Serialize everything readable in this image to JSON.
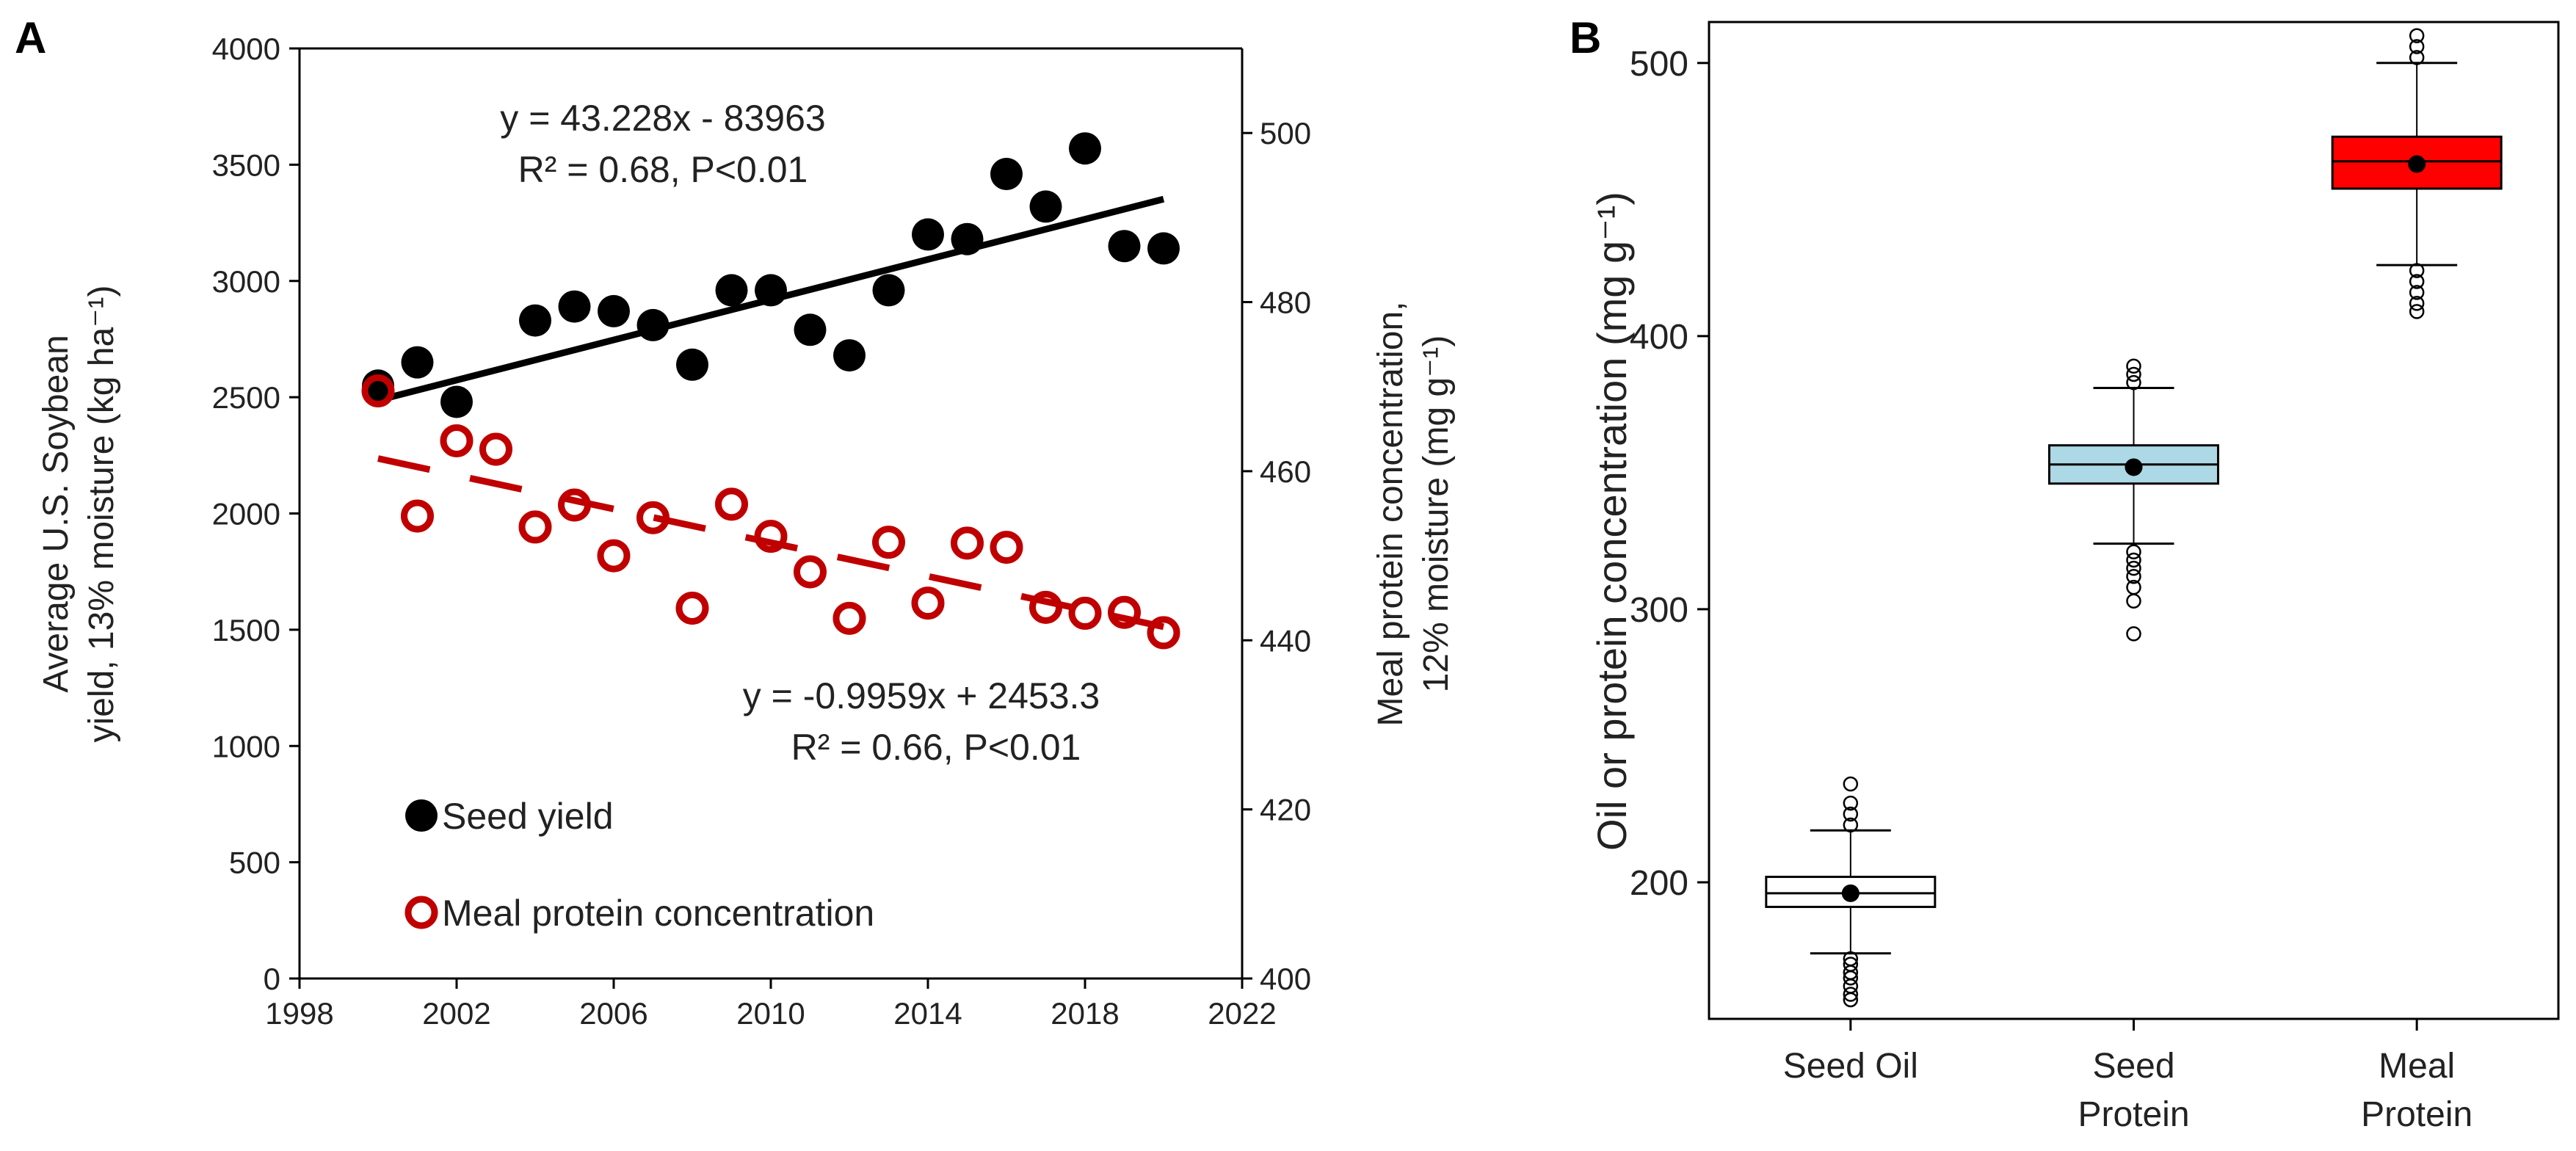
{
  "colors": {
    "seed_yield": "#000000",
    "meal_protein": "#c00000",
    "seed_oil_box": "#ffffff",
    "seed_protein_box": "#add8e6",
    "meal_protein_box": "#ff0000"
  },
  "chart_data": [
    {
      "panel": "A",
      "type": "scatter",
      "xlabel": "",
      "xlim": [
        1998,
        2022
      ],
      "xticks": [
        "1998",
        "2002",
        "2006",
        "2010",
        "2014",
        "2018",
        "2022"
      ],
      "ylabel_left": [
        "Average U.S. Soybean",
        "yield, 13% moisture (kg ha⁻¹)"
      ],
      "ylim_left": [
        0,
        4000
      ],
      "yticks_left": [
        "0",
        "500",
        "1000",
        "1500",
        "2000",
        "2500",
        "3000",
        "3500",
        "4000"
      ],
      "ylabel_right": [
        "Meal protein concentration,",
        "12% moisture (mg g⁻¹)"
      ],
      "ylim_right": [
        400,
        510
      ],
      "yticks_right": [
        "400",
        "420",
        "440",
        "460",
        "480",
        "500"
      ],
      "series": [
        {
          "name": "Seed yield",
          "axis": "left",
          "marker": "filled-circle",
          "x": [
            2000,
            2001,
            2002,
            2004,
            2005,
            2006,
            2007,
            2008,
            2009,
            2010,
            2011,
            2012,
            2013,
            2014,
            2015,
            2016,
            2017,
            2018,
            2019,
            2020
          ],
          "y": [
            2550,
            2650,
            2480,
            2830,
            2890,
            2870,
            2810,
            2640,
            2960,
            2960,
            2790,
            2680,
            2960,
            3200,
            3180,
            3460,
            3320,
            3570,
            3150,
            3140
          ],
          "trend": {
            "type": "linear",
            "x": [
              2000,
              2020
            ],
            "y": [
              2487,
              3352
            ],
            "style": "solid"
          }
        },
        {
          "name": "Meal protein concentration",
          "axis": "right",
          "marker": "open-circle",
          "x": [
            2000,
            2001,
            2002,
            2003,
            2004,
            2005,
            2006,
            2007,
            2008,
            2009,
            2010,
            2011,
            2012,
            2013,
            2014,
            2015,
            2016,
            2017,
            2018,
            2019,
            2020
          ],
          "y": [
            469.5,
            454.7,
            463.6,
            462.6,
            453.4,
            456.0,
            450.0,
            454.5,
            443.8,
            456.1,
            452.3,
            448.1,
            442.6,
            451.6,
            444.4,
            451.5,
            451.0,
            443.9,
            443.2,
            443.3,
            440.9
          ],
          "trend": {
            "type": "linear",
            "x": [
              2000,
              2020
            ],
            "y": [
              461.5,
              441.6
            ],
            "style": "dashed"
          }
        }
      ],
      "annotations": {
        "yield_eq": "y = 43.228x - 83963",
        "yield_r2": "R² = 0.68, P<0.01",
        "protein_eq": "y = -0.9959x + 2453.3",
        "protein_r2": "R² = 0.66, P<0.01"
      },
      "legend": {
        "placement": "bottom-left",
        "entries": [
          "Seed yield",
          "Meal protein concentration"
        ]
      }
    },
    {
      "panel": "B",
      "type": "box",
      "ylabel": "Oil or protein concentration (mg g⁻¹)",
      "ylim": [
        150,
        515
      ],
      "yticks": [
        "200",
        "300",
        "400",
        "500"
      ],
      "categories": [
        [
          "Seed Oil"
        ],
        [
          "Seed",
          "Protein"
        ],
        [
          "Meal",
          "Protein"
        ]
      ],
      "boxes": [
        {
          "q1": 191,
          "median": 196,
          "q3": 202,
          "whisker_low": 174,
          "whisker_high": 219,
          "mean": 196,
          "outliers": [
            157,
            159,
            162,
            165,
            167,
            170,
            172,
            221,
            225,
            229,
            236
          ]
        },
        {
          "q1": 346,
          "median": 353,
          "q3": 360,
          "whisker_low": 324,
          "whisker_high": 381,
          "mean": 352,
          "outliers": [
            291,
            303,
            308,
            312,
            315,
            318,
            321,
            383,
            386,
            389
          ]
        },
        {
          "q1": 454,
          "median": 464,
          "q3": 473,
          "whisker_low": 426,
          "whisker_high": 500,
          "mean": 463,
          "outliers": [
            409,
            412,
            416,
            420,
            424,
            502,
            506,
            510
          ]
        }
      ]
    }
  ]
}
